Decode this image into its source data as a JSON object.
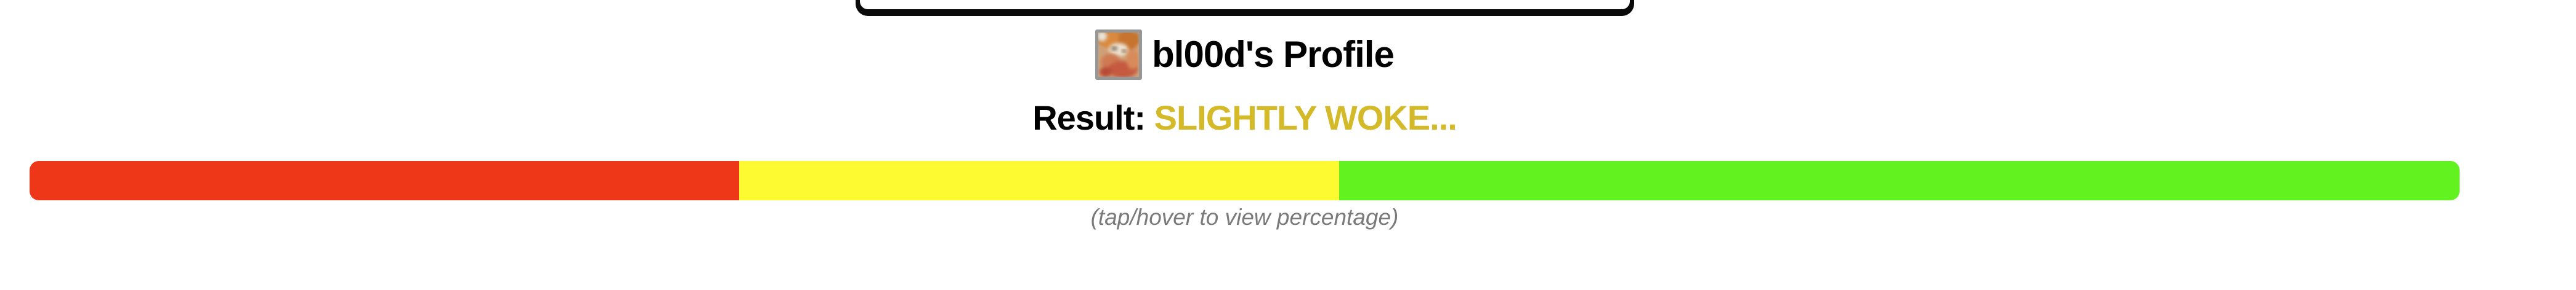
{
  "window": {
    "background": "#ffffff"
  },
  "profile": {
    "title": "bl00d's Profile",
    "result_label": "Result:",
    "result_value": "SLIGHTLY WOKE...",
    "result_value_color": "#d4b929",
    "caption": "(tap/hover to view percentage)"
  },
  "meter": {
    "segments": [
      {
        "name": "red-segment",
        "color": "#ee3719",
        "width_percent": 29.2
      },
      {
        "name": "yellow-segment",
        "color": "#fdfa31",
        "width_percent": 24.7
      },
      {
        "name": "green-segment",
        "color": "#62f220",
        "width_percent": 46.1
      }
    ]
  }
}
